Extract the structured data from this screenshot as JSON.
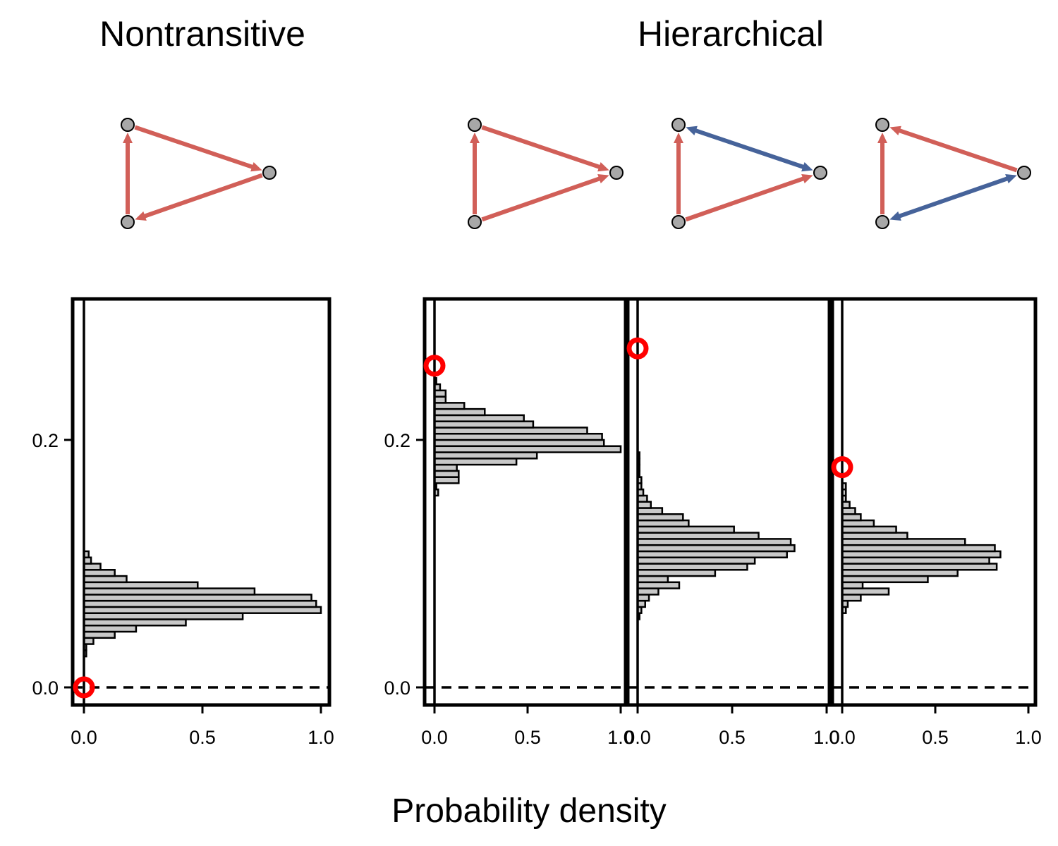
{
  "titles": {
    "left": "Nontransitive",
    "right": "Hierarchical"
  },
  "xlabel": "Probability density",
  "colors": {
    "positive": "#d15f58",
    "negative": "#46639a",
    "bar_fill": "#c8c8c8",
    "observed_marker": "#ff0000",
    "node": "#a8a8a8"
  },
  "networks": [
    {
      "edges": [
        {
          "from": "bottom",
          "to": "top",
          "color": "positive"
        },
        {
          "from": "top",
          "to": "right",
          "color": "positive"
        },
        {
          "from": "right",
          "to": "bottom",
          "color": "positive"
        }
      ]
    },
    {
      "edges": [
        {
          "from": "bottom",
          "to": "top",
          "color": "positive"
        },
        {
          "from": "top",
          "to": "right",
          "color": "positive"
        },
        {
          "from": "bottom",
          "to": "right",
          "color": "positive"
        }
      ]
    },
    {
      "edges": [
        {
          "from": "bottom",
          "to": "top",
          "color": "positive"
        },
        {
          "from": "top",
          "to": "right",
          "color": "negative",
          "both": true
        },
        {
          "from": "bottom",
          "to": "right",
          "color": "positive"
        }
      ]
    },
    {
      "edges": [
        {
          "from": "bottom",
          "to": "top",
          "color": "positive"
        },
        {
          "from": "right",
          "to": "top",
          "color": "positive"
        },
        {
          "from": "bottom",
          "to": "right",
          "color": "negative",
          "both": true
        }
      ]
    }
  ],
  "chart_data": [
    {
      "type": "bar",
      "orientation": "horizontal",
      "xlabel": "Probability density",
      "xlim": [
        0,
        1
      ],
      "x_ticks": [
        "0.0",
        "0.5",
        "1.0"
      ],
      "y_ticks": [
        "0.0",
        "0.2"
      ],
      "ylim": [
        -0.015,
        0.315
      ],
      "bin_width": 0.005,
      "bin_centers": [
        0.0275,
        0.0325,
        0.0375,
        0.0425,
        0.0475,
        0.0525,
        0.0575,
        0.0625,
        0.0675,
        0.0725,
        0.0775,
        0.0825,
        0.0875,
        0.0925,
        0.0975,
        0.1025,
        0.1075
      ],
      "values": [
        0.01,
        0.01,
        0.04,
        0.13,
        0.22,
        0.43,
        0.67,
        1.0,
        0.98,
        0.96,
        0.72,
        0.48,
        0.18,
        0.13,
        0.07,
        0.03,
        0.02
      ],
      "observed": {
        "x": 0.0,
        "y": 0.0
      },
      "reference_line": 0.0
    },
    {
      "type": "bar",
      "orientation": "horizontal",
      "xlim": [
        0,
        1
      ],
      "x_ticks": [
        "0.0",
        "0.5",
        "1.0"
      ],
      "y_ticks": [
        "0.0",
        "0.2"
      ],
      "bin_width": 0.005,
      "bin_centers": [
        0.1575,
        0.1625,
        0.1675,
        0.1725,
        0.1775,
        0.1825,
        0.1875,
        0.1925,
        0.1975,
        0.2025,
        0.2075,
        0.2125,
        0.2175,
        0.2225,
        0.2275,
        0.2325,
        0.2375,
        0.2425,
        0.2475
      ],
      "values": [
        0.02,
        0.01,
        0.13,
        0.13,
        0.12,
        0.44,
        0.55,
        1.0,
        0.91,
        0.9,
        0.82,
        0.53,
        0.48,
        0.27,
        0.16,
        0.06,
        0.06,
        0.03,
        0.01
      ],
      "observed": {
        "x": 0.0,
        "y": 0.26
      },
      "reference_line": 0.0
    },
    {
      "type": "bar",
      "orientation": "horizontal",
      "xlim": [
        0,
        1
      ],
      "x_ticks": [
        "0.0",
        "0.5",
        "1.0"
      ],
      "y_ticks": [
        "0.0",
        "0.2"
      ],
      "bin_width": 0.005,
      "bin_centers": [
        0.0575,
        0.0625,
        0.0675,
        0.0725,
        0.0775,
        0.0825,
        0.0875,
        0.0925,
        0.0975,
        0.1025,
        0.1075,
        0.1125,
        0.1175,
        0.1225,
        0.1275,
        0.1325,
        0.1375,
        0.1425,
        0.1475,
        0.1525,
        0.1575,
        0.1625,
        0.1675,
        0.1725,
        0.1775,
        0.1825,
        0.1875
      ],
      "values": [
        0.01,
        0.02,
        0.04,
        0.06,
        0.11,
        0.22,
        0.16,
        0.41,
        0.58,
        0.62,
        0.79,
        0.83,
        0.81,
        0.64,
        0.51,
        0.27,
        0.24,
        0.13,
        0.07,
        0.05,
        0.03,
        0.02,
        0.02,
        0.01,
        0.01,
        0.01,
        0.01
      ],
      "observed": {
        "x": 0.0,
        "y": 0.274
      },
      "reference_line": 0.0
    },
    {
      "type": "bar",
      "orientation": "horizontal",
      "xlim": [
        0,
        1
      ],
      "x_ticks": [
        "0.0",
        "0.5",
        "1.0"
      ],
      "y_ticks": [
        "0.0",
        "0.2"
      ],
      "bin_width": 0.005,
      "bin_centers": [
        0.0625,
        0.0675,
        0.0725,
        0.0775,
        0.0825,
        0.0875,
        0.0925,
        0.0975,
        0.1025,
        0.1075,
        0.1125,
        0.1175,
        0.1225,
        0.1275,
        0.1325,
        0.1375,
        0.1425,
        0.1475,
        0.1525,
        0.1575,
        0.1625
      ],
      "values": [
        0.02,
        0.03,
        0.1,
        0.25,
        0.11,
        0.46,
        0.62,
        0.83,
        0.79,
        0.85,
        0.82,
        0.66,
        0.35,
        0.29,
        0.17,
        0.1,
        0.07,
        0.04,
        0.02,
        0.02,
        0.02
      ],
      "observed": {
        "x": 0.0,
        "y": 0.178
      },
      "reference_line": 0.0
    }
  ]
}
